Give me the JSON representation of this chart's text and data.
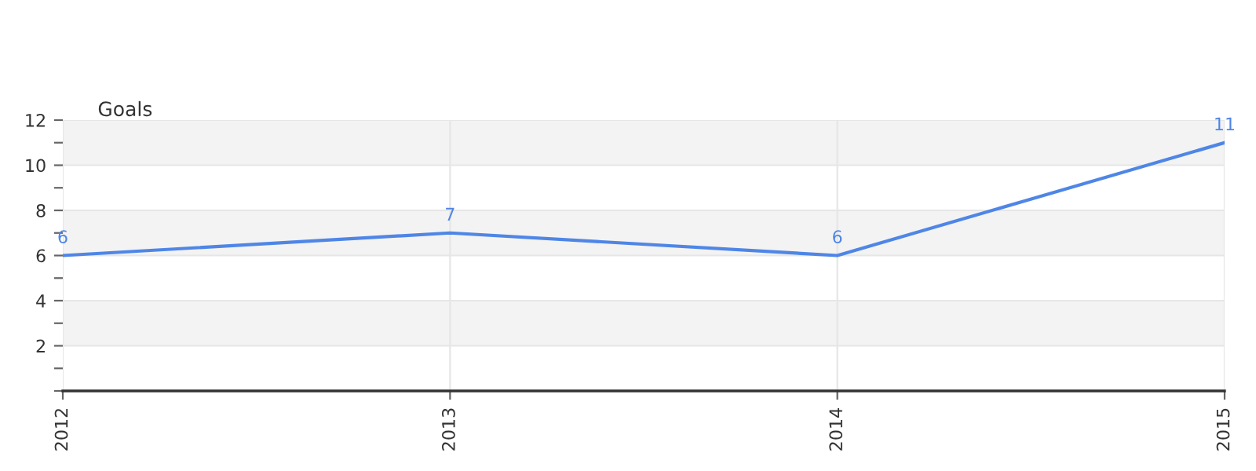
{
  "chart_data": {
    "type": "line",
    "ylabel": "Goals",
    "x": [
      2012,
      2013,
      2014,
      2015
    ],
    "series": [
      {
        "color": "#4f86e6",
        "values": [
          6,
          7,
          6,
          11
        ]
      }
    ],
    "xlim": [
      2012,
      2015
    ],
    "xticks": [
      2012,
      2013,
      2014,
      2015
    ],
    "ylim": [
      0,
      12
    ],
    "yticks": [
      {
        "value": 0,
        "label": null
      },
      {
        "value": 1,
        "label": null
      },
      2,
      {
        "value": 3,
        "label": null
      },
      4,
      {
        "value": 5,
        "label": null
      },
      6,
      {
        "value": 7,
        "label": null
      },
      8,
      {
        "value": 9,
        "label": null
      },
      10,
      {
        "value": 11,
        "label": null
      },
      12
    ],
    "bands": [
      {
        "axis": "y",
        "from": 2,
        "to": 4,
        "color": "#f3f3f3"
      },
      {
        "axis": "y",
        "from": 6,
        "to": 8,
        "color": "#f3f3f3"
      },
      {
        "axis": "y",
        "from": 10,
        "to": 12,
        "color": "#f3f3f3"
      }
    ],
    "grid": true,
    "data_labels": true,
    "marker": "none",
    "line_style": "solid",
    "legend": false
  }
}
